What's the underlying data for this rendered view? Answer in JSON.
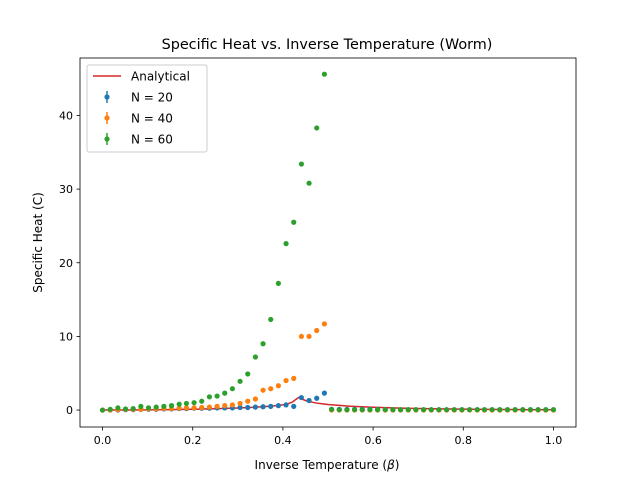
{
  "chart_data": {
    "type": "scatter",
    "title": "Specific Heat vs. Inverse Temperature (Worm)",
    "xlabel_prefix": "Inverse Temperature (",
    "xlabel_symbol": "β",
    "xlabel_suffix": ")",
    "ylabel": "Specific Heat (C)",
    "xlim": [
      -0.05,
      1.05
    ],
    "ylim": [
      -2.3,
      47.8
    ],
    "xticks": [
      {
        "value": 0.0,
        "label": "0.0"
      },
      {
        "value": 0.2,
        "label": "0.2"
      },
      {
        "value": 0.4,
        "label": "0.4"
      },
      {
        "value": 0.6,
        "label": "0.6"
      },
      {
        "value": 0.8,
        "label": "0.8"
      },
      {
        "value": 1.0,
        "label": "1.0"
      }
    ],
    "yticks": [
      {
        "value": 0,
        "label": "0"
      },
      {
        "value": 10,
        "label": "10"
      },
      {
        "value": 20,
        "label": "20"
      },
      {
        "value": 30,
        "label": "30"
      },
      {
        "value": 40,
        "label": "40"
      }
    ],
    "grid": false,
    "legend_position": "top-left",
    "line_series": {
      "name": "Analytical",
      "color": "#d62728",
      "points": [
        [
          0.0,
          0.0
        ],
        [
          0.05,
          0.01
        ],
        [
          0.1,
          0.03
        ],
        [
          0.15,
          0.06
        ],
        [
          0.2,
          0.11
        ],
        [
          0.25,
          0.18
        ],
        [
          0.3,
          0.28
        ],
        [
          0.33,
          0.36
        ],
        [
          0.36,
          0.47
        ],
        [
          0.38,
          0.57
        ],
        [
          0.4,
          0.71
        ],
        [
          0.41,
          0.83
        ],
        [
          0.42,
          1.05
        ],
        [
          0.43,
          1.5
        ],
        [
          0.435,
          1.7
        ],
        [
          0.44,
          1.55
        ],
        [
          0.45,
          1.3
        ],
        [
          0.46,
          1.12
        ],
        [
          0.48,
          0.9
        ],
        [
          0.5,
          0.75
        ],
        [
          0.55,
          0.52
        ],
        [
          0.6,
          0.38
        ],
        [
          0.65,
          0.28
        ],
        [
          0.7,
          0.21
        ],
        [
          0.75,
          0.16
        ],
        [
          0.8,
          0.12
        ],
        [
          0.85,
          0.09
        ],
        [
          0.9,
          0.07
        ],
        [
          0.95,
          0.05
        ],
        [
          1.0,
          0.04
        ]
      ]
    },
    "series": [
      {
        "name": "N = 20",
        "color": "#1f77b4",
        "x": [
          0.0,
          0.017,
          0.034,
          0.051,
          0.068,
          0.085,
          0.102,
          0.119,
          0.136,
          0.153,
          0.17,
          0.186,
          0.203,
          0.22,
          0.237,
          0.254,
          0.271,
          0.288,
          0.305,
          0.322,
          0.339,
          0.356,
          0.373,
          0.39,
          0.407,
          0.424,
          0.441,
          0.458,
          0.475,
          0.492,
          0.508,
          0.525,
          0.542,
          0.559,
          0.576,
          0.593,
          0.61,
          0.627,
          0.644,
          0.661,
          0.678,
          0.695,
          0.712,
          0.729,
          0.746,
          0.763,
          0.78,
          0.797,
          0.814,
          0.831,
          0.847,
          0.864,
          0.881,
          0.898,
          0.915,
          0.932,
          0.949,
          0.966,
          0.983,
          1.0
        ],
        "y": [
          0.0,
          0.0,
          0.0,
          0.05,
          0.05,
          0.1,
          0.1,
          0.1,
          0.15,
          0.15,
          0.2,
          0.2,
          0.25,
          0.25,
          0.25,
          0.3,
          0.3,
          0.3,
          0.35,
          0.35,
          0.4,
          0.45,
          0.5,
          0.6,
          0.7,
          0.5,
          1.7,
          1.3,
          1.6,
          2.3,
          0.1,
          0.1,
          0.1,
          0.1,
          0.1,
          0.1,
          0.1,
          0.05,
          0.05,
          0.05,
          0.05,
          0.05,
          0.05,
          0.05,
          0.05,
          0.05,
          0.05,
          0.05,
          0.05,
          0.05,
          0.05,
          0.05,
          0.05,
          0.05,
          0.05,
          0.05,
          0.05,
          0.05,
          0.05,
          0.05
        ]
      },
      {
        "name": "N = 40",
        "color": "#ff7f0e",
        "x": [
          0.0,
          0.017,
          0.034,
          0.051,
          0.068,
          0.085,
          0.102,
          0.119,
          0.136,
          0.153,
          0.17,
          0.186,
          0.203,
          0.22,
          0.237,
          0.254,
          0.271,
          0.288,
          0.305,
          0.322,
          0.339,
          0.356,
          0.373,
          0.39,
          0.407,
          0.424,
          0.441,
          0.458,
          0.475,
          0.492,
          0.508,
          0.525,
          0.542,
          0.559,
          0.576,
          0.593,
          0.61,
          0.627,
          0.644,
          0.661,
          0.678,
          0.695,
          0.712,
          0.729,
          0.746,
          0.763,
          0.78,
          0.797,
          0.814,
          0.831,
          0.847,
          0.864,
          0.881,
          0.898,
          0.915,
          0.932,
          0.949,
          0.966,
          0.983,
          1.0
        ],
        "y": [
          0.0,
          0.0,
          0.05,
          0.1,
          0.1,
          0.1,
          0.15,
          0.15,
          0.2,
          0.2,
          0.25,
          0.3,
          0.3,
          0.35,
          0.4,
          0.5,
          0.6,
          0.7,
          0.9,
          1.2,
          1.5,
          2.7,
          2.9,
          3.3,
          4.0,
          4.3,
          10.0,
          10.0,
          10.8,
          11.7,
          0.0,
          0.0,
          0.0,
          0.0,
          0.0,
          0.0,
          0.0,
          0.0,
          0.0,
          0.0,
          0.0,
          0.0,
          0.0,
          0.0,
          0.0,
          0.0,
          0.0,
          0.0,
          0.0,
          0.0,
          0.0,
          0.0,
          0.0,
          0.0,
          0.0,
          0.0,
          0.0,
          0.0,
          0.0,
          0.0
        ]
      },
      {
        "name": "N = 60",
        "color": "#2ca02c",
        "x": [
          0.0,
          0.017,
          0.034,
          0.051,
          0.068,
          0.085,
          0.102,
          0.119,
          0.136,
          0.153,
          0.17,
          0.186,
          0.203,
          0.22,
          0.237,
          0.254,
          0.271,
          0.288,
          0.305,
          0.322,
          0.339,
          0.356,
          0.373,
          0.39,
          0.407,
          0.424,
          0.441,
          0.458,
          0.475,
          0.492,
          0.508,
          0.525,
          0.542,
          0.559,
          0.576,
          0.593,
          0.61,
          0.627,
          0.644,
          0.661,
          0.678,
          0.695,
          0.712,
          0.729,
          0.746,
          0.763,
          0.78,
          0.797,
          0.814,
          0.831,
          0.847,
          0.864,
          0.881,
          0.898,
          0.915,
          0.932,
          0.949,
          0.966,
          0.983,
          1.0
        ],
        "y": [
          0.0,
          0.1,
          0.3,
          0.15,
          0.2,
          0.5,
          0.3,
          0.4,
          0.5,
          0.6,
          0.8,
          0.9,
          1.0,
          1.2,
          1.8,
          1.9,
          2.3,
          2.9,
          3.9,
          4.9,
          7.2,
          9.0,
          12.3,
          17.2,
          22.6,
          25.5,
          33.4,
          30.8,
          38.3,
          45.6,
          0.1,
          0.05,
          0.05,
          0.05,
          0.05,
          0.05,
          0.05,
          0.05,
          0.05,
          0.05,
          0.05,
          0.05,
          0.05,
          0.05,
          0.05,
          0.05,
          0.05,
          0.05,
          0.05,
          0.05,
          0.05,
          0.05,
          0.05,
          0.05,
          0.05,
          0.05,
          0.05,
          0.05,
          0.05,
          0.05
        ]
      }
    ]
  }
}
